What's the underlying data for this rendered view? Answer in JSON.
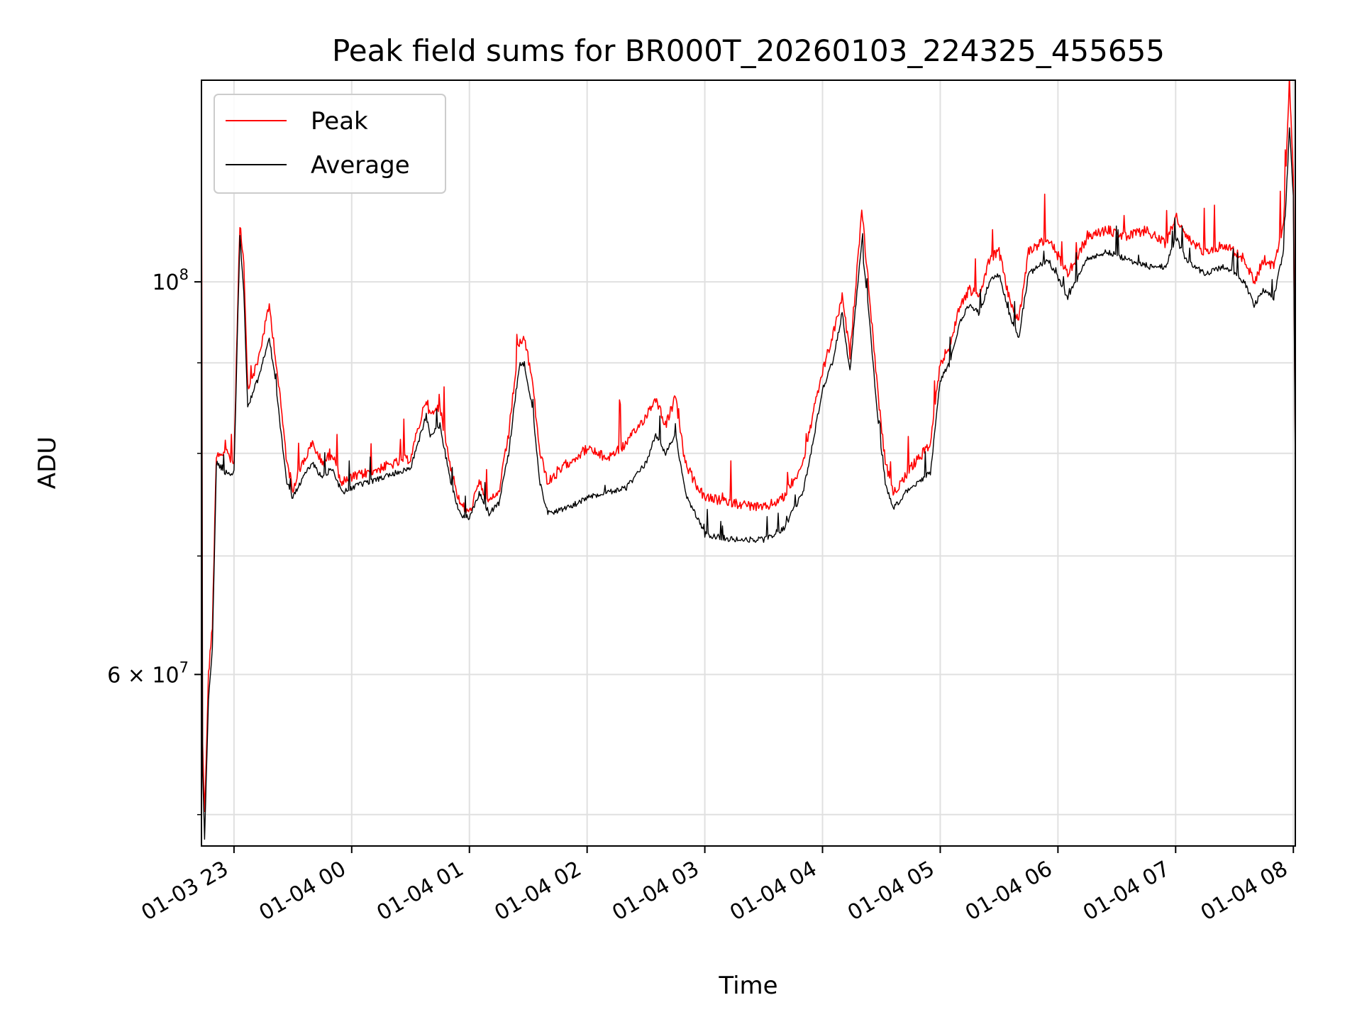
{
  "chart_data": {
    "type": "line",
    "title": "Peak field sums for BR000T_20260103_224325_455655",
    "xlabel": "Time",
    "ylabel": "ADU",
    "y_scale": "log",
    "ylim": [
      48000000,
      130000000
    ],
    "xlim": [
      "2026-01-03T22:43:25",
      "2026-01-04T08:01:00"
    ],
    "grid": true,
    "legend_position": "top-left",
    "x_ticks": [
      {
        "t": "2026-01-03T23:00",
        "label": "01-03 23"
      },
      {
        "t": "2026-01-04T00:00",
        "label": "01-04 00"
      },
      {
        "t": "2026-01-04T01:00",
        "label": "01-04 01"
      },
      {
        "t": "2026-01-04T02:00",
        "label": "01-04 02"
      },
      {
        "t": "2026-01-04T03:00",
        "label": "01-04 03"
      },
      {
        "t": "2026-01-04T04:00",
        "label": "01-04 04"
      },
      {
        "t": "2026-01-04T05:00",
        "label": "01-04 05"
      },
      {
        "t": "2026-01-04T06:00",
        "label": "01-04 06"
      },
      {
        "t": "2026-01-04T07:00",
        "label": "01-04 07"
      },
      {
        "t": "2026-01-04T08:00",
        "label": "01-04 08"
      }
    ],
    "y_major_ticks": [
      {
        "value": 100000000,
        "base": "10",
        "exp": "8",
        "mant": ""
      },
      {
        "value": 60000000,
        "base": "10",
        "exp": "7",
        "mant": "6 × "
      }
    ],
    "y_minor_ticks": [
      50000000,
      70000000,
      80000000,
      90000000
    ],
    "series": [
      {
        "name": "Peak",
        "color": "#ff0000",
        "points": [
          [
            "2026-01-03T22:43:25",
            127000000
          ],
          [
            "2026-01-03T22:44",
            55000000
          ],
          [
            "2026-01-03T22:45",
            50000000
          ],
          [
            "2026-01-03T22:47",
            60000000
          ],
          [
            "2026-01-03T22:49",
            64000000
          ],
          [
            "2026-01-03T22:51",
            80000000
          ],
          [
            "2026-01-03T22:56",
            80000000
          ],
          [
            "2026-01-03T23:00",
            79000000
          ],
          [
            "2026-01-03T23:02",
            98000000
          ],
          [
            "2026-01-03T23:03",
            108000000
          ],
          [
            "2026-01-03T23:05",
            102000000
          ],
          [
            "2026-01-03T23:07",
            87000000
          ],
          [
            "2026-01-03T23:12",
            90000000
          ],
          [
            "2026-01-03T23:18",
            97000000
          ],
          [
            "2026-01-03T23:21",
            91000000
          ],
          [
            "2026-01-03T23:24",
            85000000
          ],
          [
            "2026-01-03T23:27",
            79000000
          ],
          [
            "2026-01-03T23:30",
            76500000
          ],
          [
            "2026-01-03T23:35",
            79000000
          ],
          [
            "2026-01-03T23:40",
            81000000
          ],
          [
            "2026-01-03T23:45",
            79000000
          ],
          [
            "2026-01-03T23:50",
            80000000
          ],
          [
            "2026-01-03T23:55",
            77000000
          ],
          [
            "2026-01-04T00:00",
            77500000
          ],
          [
            "2026-01-04T00:15",
            78500000
          ],
          [
            "2026-01-04T00:30",
            79500000
          ],
          [
            "2026-01-04T00:38",
            86000000
          ],
          [
            "2026-01-04T00:40",
            84000000
          ],
          [
            "2026-01-04T00:45",
            85000000
          ],
          [
            "2026-01-04T00:50",
            79000000
          ],
          [
            "2026-01-04T00:55",
            75000000
          ],
          [
            "2026-01-04T01:00",
            74000000
          ],
          [
            "2026-01-04T01:05",
            77000000
          ],
          [
            "2026-01-04T01:10",
            75000000
          ],
          [
            "2026-01-04T01:15",
            76000000
          ],
          [
            "2026-01-04T01:20",
            82000000
          ],
          [
            "2026-01-04T01:25",
            92000000
          ],
          [
            "2026-01-04T01:28",
            93000000
          ],
          [
            "2026-01-04T01:32",
            88000000
          ],
          [
            "2026-01-04T01:36",
            80000000
          ],
          [
            "2026-01-04T01:40",
            77000000
          ],
          [
            "2026-01-04T01:50",
            79000000
          ],
          [
            "2026-01-04T02:00",
            80500000
          ],
          [
            "2026-01-04T02:10",
            79500000
          ],
          [
            "2026-01-04T02:20",
            81000000
          ],
          [
            "2026-01-04T02:30",
            84000000
          ],
          [
            "2026-01-04T02:35",
            86000000
          ],
          [
            "2026-01-04T02:40",
            83000000
          ],
          [
            "2026-01-04T02:45",
            86000000
          ],
          [
            "2026-01-04T02:50",
            79000000
          ],
          [
            "2026-01-04T02:55",
            77000000
          ],
          [
            "2026-01-04T03:00",
            75500000
          ],
          [
            "2026-01-04T03:15",
            75000000
          ],
          [
            "2026-01-04T03:30",
            74500000
          ],
          [
            "2026-01-04T03:40",
            75500000
          ],
          [
            "2026-01-04T03:50",
            79000000
          ],
          [
            "2026-01-04T03:55",
            84000000
          ],
          [
            "2026-01-04T04:00",
            89000000
          ],
          [
            "2026-01-04T04:05",
            93000000
          ],
          [
            "2026-01-04T04:10",
            98000000
          ],
          [
            "2026-01-04T04:14",
            91000000
          ],
          [
            "2026-01-04T04:18",
            103000000
          ],
          [
            "2026-01-04T04:20",
            110000000
          ],
          [
            "2026-01-04T04:24",
            98000000
          ],
          [
            "2026-01-04T04:28",
            87000000
          ],
          [
            "2026-01-04T04:32",
            79000000
          ],
          [
            "2026-01-04T04:36",
            76000000
          ],
          [
            "2026-01-04T04:45",
            78500000
          ],
          [
            "2026-01-04T04:55",
            81000000
          ],
          [
            "2026-01-04T05:00",
            90000000
          ],
          [
            "2026-01-04T05:05",
            92000000
          ],
          [
            "2026-01-04T05:10",
            97000000
          ],
          [
            "2026-01-04T05:15",
            99000000
          ],
          [
            "2026-01-04T05:20",
            98000000
          ],
          [
            "2026-01-04T05:25",
            103000000
          ],
          [
            "2026-01-04T05:30",
            104000000
          ],
          [
            "2026-01-04T05:35",
            98000000
          ],
          [
            "2026-01-04T05:40",
            95000000
          ],
          [
            "2026-01-04T05:45",
            104000000
          ],
          [
            "2026-01-04T05:55",
            106000000
          ],
          [
            "2026-01-04T06:05",
            101000000
          ],
          [
            "2026-01-04T06:15",
            106000000
          ],
          [
            "2026-01-04T06:25",
            107000000
          ],
          [
            "2026-01-04T06:35",
            106000000
          ],
          [
            "2026-01-04T06:45",
            107000000
          ],
          [
            "2026-01-04T06:55",
            105000000
          ],
          [
            "2026-01-04T07:00",
            109000000
          ],
          [
            "2026-01-04T07:05",
            106000000
          ],
          [
            "2026-01-04T07:15",
            104000000
          ],
          [
            "2026-01-04T07:25",
            105000000
          ],
          [
            "2026-01-04T07:35",
            103000000
          ],
          [
            "2026-01-04T07:40",
            100000000
          ],
          [
            "2026-01-04T07:45",
            103000000
          ],
          [
            "2026-01-04T07:50",
            102000000
          ],
          [
            "2026-01-04T07:55",
            108000000
          ],
          [
            "2026-01-04T07:58",
            130000000
          ],
          [
            "2026-01-04T08:00",
            115000000
          ],
          [
            "2026-01-04T08:01",
            80000000
          ]
        ]
      },
      {
        "name": "Average",
        "color": "#000000",
        "points": [
          [
            "2026-01-03T22:43:25",
            122000000
          ],
          [
            "2026-01-03T22:44",
            53000000
          ],
          [
            "2026-01-03T22:45",
            48500000
          ],
          [
            "2026-01-03T22:47",
            58000000
          ],
          [
            "2026-01-03T22:49",
            62000000
          ],
          [
            "2026-01-03T22:51",
            79000000
          ],
          [
            "2026-01-03T22:56",
            78000000
          ],
          [
            "2026-01-03T23:00",
            78000000
          ],
          [
            "2026-01-03T23:02",
            96000000
          ],
          [
            "2026-01-03T23:03",
            106000000
          ],
          [
            "2026-01-03T23:05",
            99000000
          ],
          [
            "2026-01-03T23:07",
            85000000
          ],
          [
            "2026-01-03T23:12",
            88000000
          ],
          [
            "2026-01-03T23:18",
            93000000
          ],
          [
            "2026-01-03T23:21",
            88000000
          ],
          [
            "2026-01-03T23:24",
            82000000
          ],
          [
            "2026-01-03T23:27",
            77000000
          ],
          [
            "2026-01-03T23:30",
            75500000
          ],
          [
            "2026-01-03T23:35",
            77500000
          ],
          [
            "2026-01-03T23:40",
            79000000
          ],
          [
            "2026-01-03T23:45",
            77500000
          ],
          [
            "2026-01-03T23:50",
            78500000
          ],
          [
            "2026-01-03T23:55",
            76000000
          ],
          [
            "2026-01-04T00:00",
            76500000
          ],
          [
            "2026-01-04T00:15",
            77500000
          ],
          [
            "2026-01-04T00:30",
            78500000
          ],
          [
            "2026-01-04T00:38",
            84000000
          ],
          [
            "2026-01-04T00:40",
            82000000
          ],
          [
            "2026-01-04T00:45",
            83000000
          ],
          [
            "2026-01-04T00:50",
            77500000
          ],
          [
            "2026-01-04T00:55",
            74000000
          ],
          [
            "2026-01-04T01:00",
            73500000
          ],
          [
            "2026-01-04T01:05",
            76000000
          ],
          [
            "2026-01-04T01:10",
            74000000
          ],
          [
            "2026-01-04T01:15",
            75000000
          ],
          [
            "2026-01-04T01:20",
            80000000
          ],
          [
            "2026-01-04T01:25",
            89000000
          ],
          [
            "2026-01-04T01:28",
            90000000
          ],
          [
            "2026-01-04T01:32",
            85000000
          ],
          [
            "2026-01-04T01:36",
            77000000
          ],
          [
            "2026-01-04T01:40",
            74000000
          ],
          [
            "2026-01-04T01:50",
            74500000
          ],
          [
            "2026-01-04T02:00",
            75500000
          ],
          [
            "2026-01-04T02:10",
            76000000
          ],
          [
            "2026-01-04T02:20",
            76500000
          ],
          [
            "2026-01-04T02:30",
            79000000
          ],
          [
            "2026-01-04T02:35",
            82000000
          ],
          [
            "2026-01-04T02:40",
            80000000
          ],
          [
            "2026-01-04T02:45",
            82000000
          ],
          [
            "2026-01-04T02:50",
            76000000
          ],
          [
            "2026-01-04T02:55",
            74000000
          ],
          [
            "2026-01-04T03:00",
            72000000
          ],
          [
            "2026-01-04T03:15",
            71500000
          ],
          [
            "2026-01-04T03:30",
            71500000
          ],
          [
            "2026-01-04T03:40",
            72500000
          ],
          [
            "2026-01-04T03:50",
            76000000
          ],
          [
            "2026-01-04T03:55",
            81000000
          ],
          [
            "2026-01-04T04:00",
            87000000
          ],
          [
            "2026-01-04T04:05",
            90000000
          ],
          [
            "2026-01-04T04:10",
            96000000
          ],
          [
            "2026-01-04T04:14",
            89000000
          ],
          [
            "2026-01-04T04:18",
            100000000
          ],
          [
            "2026-01-04T04:20",
            105000000
          ],
          [
            "2026-01-04T04:24",
            95000000
          ],
          [
            "2026-01-04T04:28",
            84000000
          ],
          [
            "2026-01-04T04:32",
            77000000
          ],
          [
            "2026-01-04T04:36",
            74500000
          ],
          [
            "2026-01-04T04:45",
            76500000
          ],
          [
            "2026-01-04T04:55",
            78000000
          ],
          [
            "2026-01-04T05:00",
            88000000
          ],
          [
            "2026-01-04T05:05",
            90000000
          ],
          [
            "2026-01-04T05:10",
            95000000
          ],
          [
            "2026-01-04T05:15",
            97000000
          ],
          [
            "2026-01-04T05:20",
            96000000
          ],
          [
            "2026-01-04T05:25",
            100000000
          ],
          [
            "2026-01-04T05:30",
            101000000
          ],
          [
            "2026-01-04T05:35",
            96000000
          ],
          [
            "2026-01-04T05:40",
            93000000
          ],
          [
            "2026-01-04T05:45",
            101000000
          ],
          [
            "2026-01-04T05:55",
            103000000
          ],
          [
            "2026-01-04T06:05",
            98000000
          ],
          [
            "2026-01-04T06:15",
            103000000
          ],
          [
            "2026-01-04T06:25",
            104000000
          ],
          [
            "2026-01-04T06:35",
            103000000
          ],
          [
            "2026-01-04T06:45",
            102000000
          ],
          [
            "2026-01-04T06:55",
            102000000
          ],
          [
            "2026-01-04T07:00",
            106000000
          ],
          [
            "2026-01-04T07:05",
            103000000
          ],
          [
            "2026-01-04T07:15",
            101000000
          ],
          [
            "2026-01-04T07:25",
            102000000
          ],
          [
            "2026-01-04T07:35",
            100000000
          ],
          [
            "2026-01-04T07:40",
            97000000
          ],
          [
            "2026-01-04T07:45",
            99000000
          ],
          [
            "2026-01-04T07:50",
            98000000
          ],
          [
            "2026-01-04T07:55",
            104000000
          ],
          [
            "2026-01-04T07:58",
            122000000
          ],
          [
            "2026-01-04T08:00",
            112000000
          ],
          [
            "2026-01-04T08:01",
            78000000
          ]
        ]
      }
    ]
  }
}
